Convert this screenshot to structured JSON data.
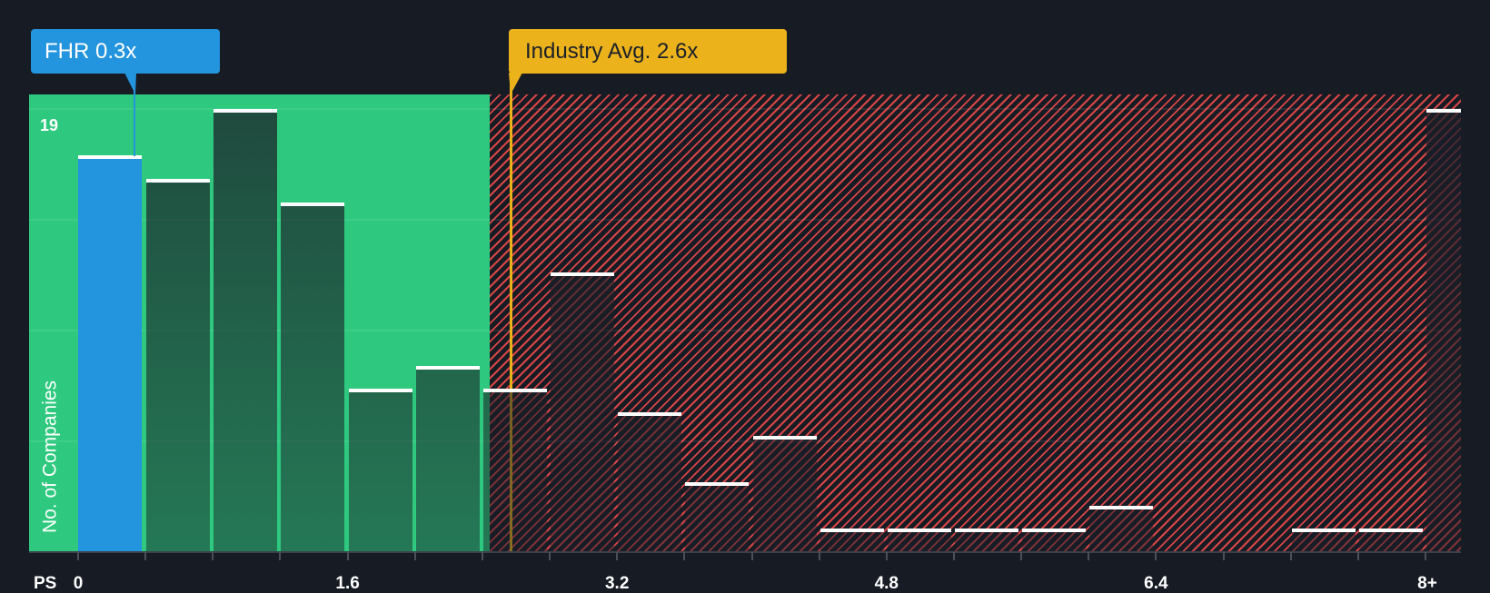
{
  "chart_data": {
    "type": "bar",
    "title": "",
    "xlabel": "PS",
    "ylabel": "No. of Companies",
    "categories": [
      "0-0.4",
      "0.4-0.8",
      "0.8-1.2",
      "1.2-1.6",
      "1.6-2.0",
      "2.0-2.4",
      "2.4-2.8",
      "2.8-3.2",
      "3.2-3.6",
      "3.6-4.0",
      "4.0-4.4",
      "4.4-4.8",
      "4.8-5.2",
      "5.2-5.6",
      "5.6-6.0",
      "6.0-6.4",
      "6.4-6.8",
      "6.8-7.2",
      "7.2-7.6",
      "7.6-8.0",
      "8+"
    ],
    "values": [
      17,
      16,
      19,
      15,
      7,
      8,
      7,
      12,
      6,
      3,
      5,
      1,
      1,
      1,
      1,
      2,
      0,
      0,
      1,
      1,
      19
    ],
    "ylim": [
      0,
      19
    ],
    "y_tick_labels": [
      "19"
    ],
    "x_ticks": [
      {
        "label": "0",
        "index": 0
      },
      {
        "label": "1.6",
        "index": 4
      },
      {
        "label": "3.2",
        "index": 8
      },
      {
        "label": "4.8",
        "index": 12
      },
      {
        "label": "6.4",
        "index": 16
      },
      {
        "label": "8+",
        "index": 20
      }
    ],
    "grid": true,
    "highlight": {
      "label": "FHR 0.3x",
      "ticker": "FHR",
      "value": 0.3,
      "bin_index": 0,
      "color": "#2394de"
    },
    "reference_line": {
      "label": "Industry Avg. 2.6x",
      "value": 2.6,
      "color": "#ebb21b"
    },
    "regions": [
      {
        "name": "below-industry",
        "color": "#2ec97e"
      },
      {
        "name": "above-industry",
        "color": "#d94646",
        "pattern": "hatched"
      }
    ]
  },
  "callouts": {
    "company": "FHR 0.3x",
    "industry": "Industry Avg. 2.6x"
  },
  "axis": {
    "x_title": "PS",
    "y_title": "No. of Companies",
    "y_max": "19"
  }
}
